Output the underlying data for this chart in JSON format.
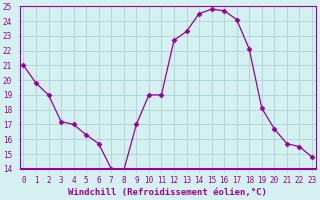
{
  "x": [
    0,
    1,
    2,
    3,
    4,
    5,
    6,
    7,
    8,
    9,
    10,
    11,
    12,
    13,
    14,
    15,
    16,
    17,
    18,
    19,
    20,
    21,
    22,
    23
  ],
  "y": [
    21.0,
    19.8,
    19.0,
    17.2,
    17.0,
    16.3,
    15.7,
    14.0,
    13.9,
    17.0,
    19.0,
    19.0,
    22.7,
    23.3,
    24.5,
    24.8,
    24.7,
    24.1,
    22.1,
    18.1,
    16.7,
    15.7,
    15.5,
    14.8
  ],
  "line_color": "#990099",
  "marker": "D",
  "marker_size": 2.5,
  "bg_color": "#d4f0f0",
  "grid_color": "#b0d8d8",
  "xlabel": "Windchill (Refroidissement éolien,°C)",
  "xlabel_color": "#990099",
  "xlabel_bg": "#800080",
  "ylim": [
    14,
    25
  ],
  "xlim": [
    0,
    23
  ],
  "yticks": [
    14,
    15,
    16,
    17,
    18,
    19,
    20,
    21,
    22,
    23,
    24,
    25
  ],
  "xticks": [
    0,
    1,
    2,
    3,
    4,
    5,
    6,
    7,
    8,
    9,
    10,
    11,
    12,
    13,
    14,
    15,
    16,
    17,
    18,
    19,
    20,
    21,
    22,
    23
  ],
  "tick_fontsize": 5.5,
  "xlabel_fontsize": 6.5
}
